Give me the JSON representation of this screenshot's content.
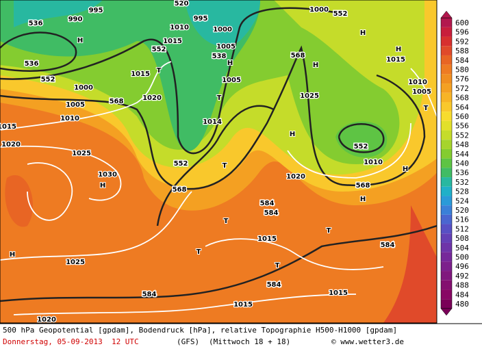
{
  "map": {
    "labels": [
      "536",
      "990",
      "995",
      "520",
      "995",
      "1010",
      "1000",
      "1015",
      "552",
      "538",
      "1005",
      "H",
      "536",
      "552",
      "T",
      "1015",
      "1000",
      "1005",
      "T",
      "568",
      "1020",
      "1005",
      "1010",
      "1015",
      "1020",
      "1025",
      "1014",
      "552",
      "T",
      "568",
      "H",
      "1030",
      "568",
      "H",
      "1025",
      "H",
      "552",
      "1000",
      "H",
      "H",
      "1015",
      "1010",
      "1005",
      "T",
      "552",
      "1010",
      "H",
      "568",
      "H",
      "1020",
      "584",
      "584",
      "T",
      "T",
      "1015",
      "584",
      "T",
      "1025",
      "T",
      "584",
      "584",
      "1015",
      "1015",
      "1020",
      "H",
      "H"
    ],
    "colorbar": {
      "values": [
        600,
        596,
        592,
        588,
        584,
        580,
        576,
        572,
        568,
        564,
        560,
        556,
        552,
        548,
        544,
        540,
        536,
        532,
        528,
        524,
        520,
        516,
        512,
        508,
        504,
        500,
        496,
        492,
        488,
        484,
        480
      ],
      "colors": [
        "#b2184e",
        "#c81e3c",
        "#d7302f",
        "#e04a2a",
        "#e86524",
        "#ee7b22",
        "#f08e20",
        "#f4a022",
        "#f7b426",
        "#f9c82c",
        "#f7dc2e",
        "#e2e02a",
        "#c5dc2a",
        "#a6d42c",
        "#84cc30",
        "#5ec444",
        "#40bc64",
        "#28b8a0",
        "#20b0c8",
        "#2a9ad8",
        "#3a80d8",
        "#4a66d0",
        "#5850c4",
        "#6440b6",
        "#6e34a8",
        "#76289a",
        "#7c208c",
        "#80187e",
        "#841070",
        "#880864",
        "#7a0058"
      ]
    }
  },
  "caption": {
    "line1": "500 hPa Geopotential [gpdam], Bodendruck [hPa], relative Topographie H500-H1000 [gpdam]",
    "date": "Donnerstag, 05-09-2013  12 UTC",
    "model": "(GFS)",
    "run": "(Mittwoch 18 + 18)",
    "source": "© www.wetter3.de"
  }
}
